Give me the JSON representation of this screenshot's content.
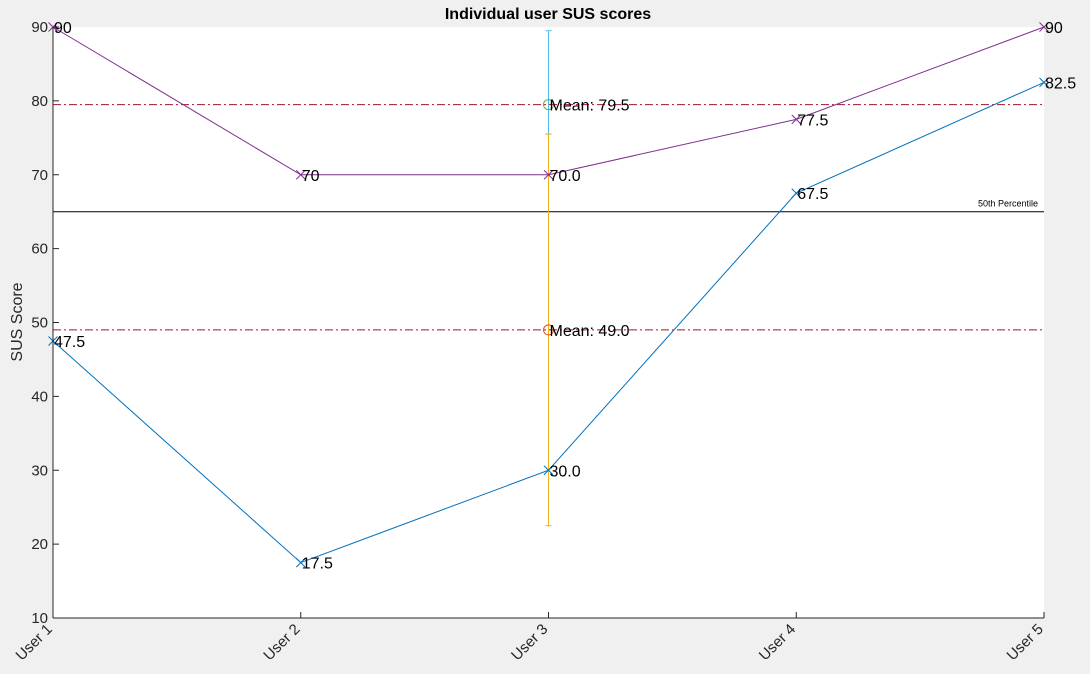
{
  "chart_data": {
    "type": "line",
    "title": "Individual user SUS scores",
    "ylabel": "SUS Score",
    "xlabel": "",
    "categories": [
      "User 1",
      "User 2",
      "User 3",
      "User 4",
      "User 5"
    ],
    "ylim": [
      10,
      90
    ],
    "yticks": [
      10,
      20,
      30,
      40,
      50,
      60,
      70,
      80,
      90
    ],
    "grid": false,
    "series": [
      {
        "values": [
          90,
          70,
          70,
          77.5,
          90
        ],
        "labels": [
          "90",
          "70",
          "70.0",
          "77.5",
          "90"
        ],
        "color": "#7e2f8e",
        "marker": "x"
      },
      {
        "values": [
          47.5,
          17.5,
          30,
          67.5,
          82.5
        ],
        "labels": [
          "47.5",
          "17.5",
          "30.0",
          "67.5",
          "82.5"
        ],
        "color": "#0072bd",
        "marker": "x"
      }
    ],
    "reference_lines": [
      {
        "label": "",
        "value": 79.5,
        "color": "#a2142f",
        "style": "dash-dot"
      },
      {
        "label": "",
        "value": 49,
        "color": "#a2142f",
        "style": "dash-dot"
      },
      {
        "label": "50th Percentile",
        "value": 65,
        "color": "#000000",
        "style": "solid"
      }
    ],
    "means": [
      {
        "category": "User 3",
        "value": 79.5,
        "label": "Mean: 79.5",
        "error_low": 75.5,
        "error_high": 89.5,
        "marker_color": "#77ac30",
        "bar_color": "#4dbeee"
      },
      {
        "category": "User 3",
        "value": 49,
        "label": "Mean: 49.0",
        "error_low": 22.5,
        "error_high": 75.5,
        "marker_color": "#d95319",
        "bar_color": "#edb120"
      }
    ]
  }
}
